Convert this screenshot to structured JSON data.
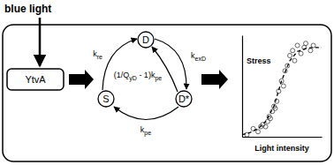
{
  "diagram": {
    "input": "blue light",
    "protein": "YtvA",
    "states": [
      "D",
      "S",
      "D*"
    ],
    "rates": [
      [
        {
          "text": "k",
          "sub": false
        },
        {
          "text": "re",
          "sub": true
        }
      ],
      [
        {
          "text": "k",
          "sub": false
        },
        {
          "text": "exD",
          "sub": true
        }
      ],
      [
        {
          "text": "(1/Q",
          "sub": false
        },
        {
          "text": "yD",
          "sub": true
        },
        {
          "text": " - 1)k",
          "sub": false
        },
        {
          "text": "pe",
          "sub": true
        }
      ],
      [
        {
          "text": "k",
          "sub": false
        },
        {
          "text": "pe",
          "sub": true
        }
      ]
    ]
  },
  "chart_data": {
    "type": "scatter",
    "x_label": "Light intensity",
    "y_label": "Stress",
    "log": "x",
    "xlim": [
      0.01,
      1000
    ],
    "ylim": [
      0,
      1
    ],
    "tick_labels": false,
    "grid": false,
    "series": [
      {
        "type": "scatter",
        "marker": "circle",
        "color": "#555555",
        "x": [
          0.02,
          0.05,
          0.1,
          0.15,
          0.2,
          0.3,
          0.4,
          0.5,
          0.6,
          0.8,
          1,
          1.2,
          1.5,
          2,
          3,
          4,
          5,
          7,
          10,
          15,
          20,
          30,
          50,
          80,
          100,
          200,
          300
        ],
        "values": [
          0.02,
          0.08,
          0.05,
          0.1,
          0.12,
          0.1,
          0.15,
          0.2,
          0.18,
          0.25,
          0.3,
          0.28,
          0.35,
          0.45,
          0.55,
          0.5,
          0.65,
          0.7,
          0.8,
          0.85,
          0.75,
          0.9,
          0.82,
          0.88,
          0.92,
          0.85,
          0.9
        ]
      },
      {
        "type": "line",
        "line_style": "dashed",
        "color": "#000000",
        "x": [
          0.01,
          0.03,
          0.1,
          0.3,
          1,
          3,
          10,
          30,
          100,
          300,
          1000
        ],
        "values": [
          0.02,
          0.04,
          0.08,
          0.15,
          0.3,
          0.55,
          0.75,
          0.84,
          0.87,
          0.88,
          0.88
        ]
      }
    ]
  }
}
